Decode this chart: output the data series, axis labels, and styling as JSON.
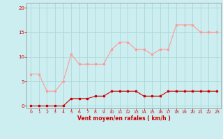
{
  "x": [
    0,
    1,
    2,
    3,
    4,
    5,
    6,
    7,
    8,
    9,
    10,
    11,
    12,
    13,
    14,
    15,
    16,
    17,
    18,
    19,
    20,
    21,
    22,
    23
  ],
  "rafales": [
    6.5,
    6.5,
    3.0,
    3.0,
    5.0,
    10.5,
    8.5,
    8.5,
    8.5,
    8.5,
    11.5,
    13.0,
    13.0,
    11.5,
    11.5,
    10.5,
    11.5,
    11.5,
    16.5,
    16.5,
    16.5,
    15.0,
    15.0,
    15.0
  ],
  "moyen": [
    0.0,
    0.0,
    0.0,
    0.0,
    0.0,
    1.5,
    1.5,
    1.5,
    2.0,
    2.0,
    3.0,
    3.0,
    3.0,
    3.0,
    2.0,
    2.0,
    2.0,
    3.0,
    3.0,
    3.0,
    3.0,
    3.0,
    3.0,
    3.0
  ],
  "bg_color": "#cceef0",
  "grid_color": "#aad8d8",
  "line_color_rafales": "#ff9999",
  "line_color_moyen": "#cc0000",
  "marker_color_rafales": "#ff9999",
  "marker_color_moyen": "#cc0000",
  "xlabel": "Vent moyen/en rafales ( km/h )",
  "xlabel_color": "#cc0000",
  "ytick_labels": [
    "0",
    "5",
    "10",
    "15",
    "20"
  ],
  "ytick_vals": [
    0,
    5,
    10,
    15,
    20
  ],
  "ylim": [
    -0.5,
    21
  ],
  "xlim": [
    -0.5,
    23.5
  ],
  "tick_color": "#cc0000",
  "spine_color": "#888888"
}
